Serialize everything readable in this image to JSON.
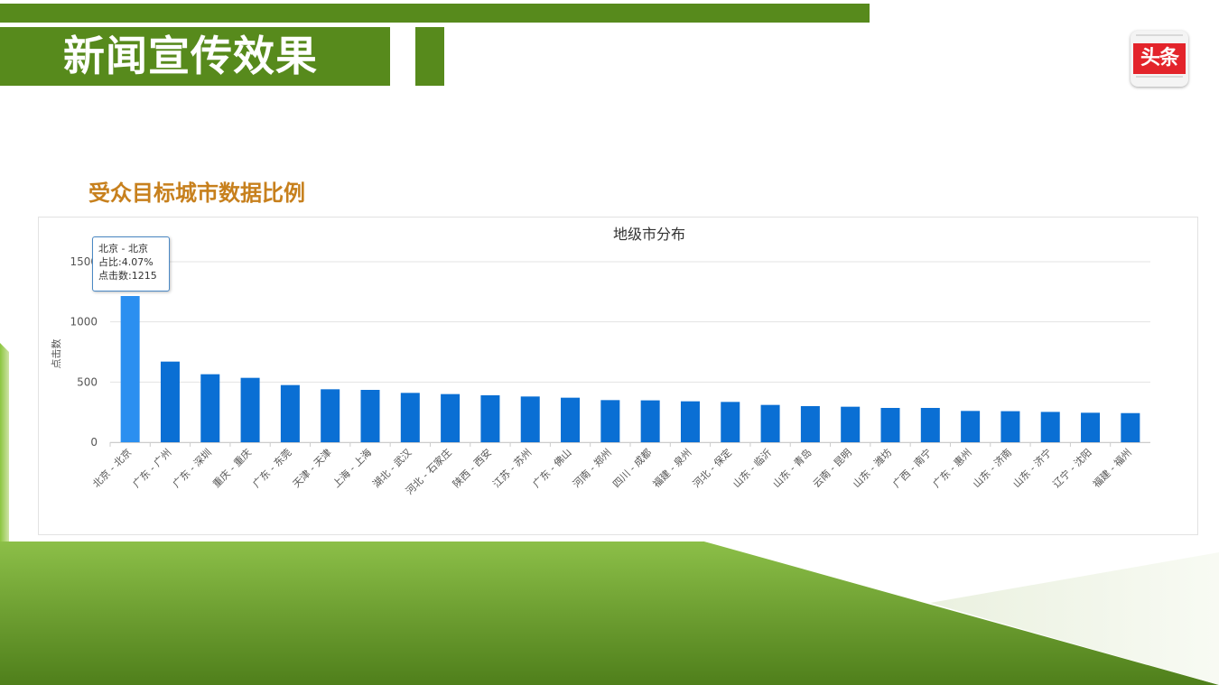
{
  "header": {
    "title": "新闻宣传效果",
    "subtitle": "受众目标城市数据比例"
  },
  "logo": {
    "text": "头条",
    "icon": "toutiao-logo-icon"
  },
  "colors": {
    "brand_green": "#578a1c",
    "subtitle_orange": "#c7801d",
    "bar_blue": "#0a6fd4",
    "bar_highlight": "#2b8ff0",
    "logo_red": "#e3242b"
  },
  "tooltip": {
    "line1": "北京 - 北京",
    "line2": "占比:4.07%",
    "line3": "点击数:1215"
  },
  "chart_data": {
    "type": "bar",
    "title": "地级市分布",
    "xlabel": "",
    "ylabel": "点击数",
    "ylim": [
      0,
      1500
    ],
    "yticks": [
      0,
      500,
      1000,
      1500
    ],
    "grid": true,
    "highlighted_index": 0,
    "categories": [
      "北京 - 北京",
      "广东 - 广州",
      "广东 - 深圳",
      "重庆 - 重庆",
      "广东 - 东莞",
      "天津 - 天津",
      "上海 - 上海",
      "湖北 - 武汉",
      "河北 - 石家庄",
      "陕西 - 西安",
      "江苏 - 苏州",
      "广东 - 佛山",
      "河南 - 郑州",
      "四川 - 成都",
      "福建 - 泉州",
      "河北 - 保定",
      "山东 - 临沂",
      "山东 - 青岛",
      "云南 - 昆明",
      "山东 - 潍坊",
      "广西 - 南宁",
      "广东 - 惠州",
      "山东 - 济南",
      "山东 - 济宁",
      "辽宁 - 沈阳",
      "福建 - 福州"
    ],
    "values": [
      1215,
      670,
      565,
      535,
      475,
      440,
      435,
      410,
      400,
      390,
      380,
      370,
      350,
      348,
      340,
      335,
      310,
      300,
      295,
      285,
      285,
      260,
      258,
      252,
      245,
      242
    ]
  }
}
